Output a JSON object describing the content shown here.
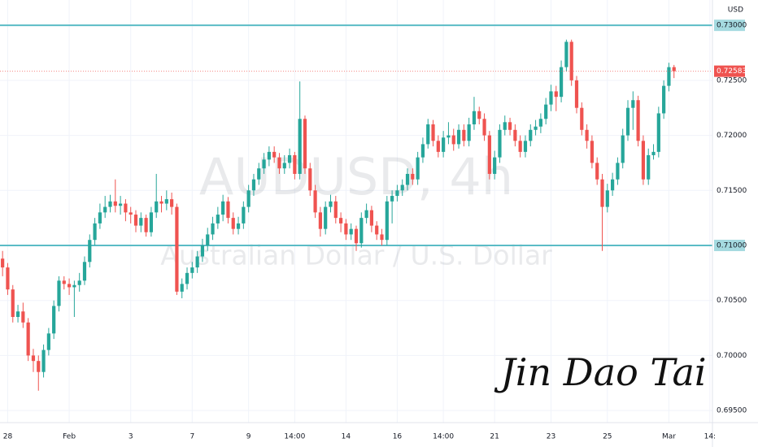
{
  "chart_data": {
    "type": "candlestick",
    "watermark": "AUDUSD, 4h",
    "watermark_subtitle": "Australian Dollar / U.S. Dollar",
    "currency": "USD",
    "up_color": "#26a69a",
    "down_color": "#ef5350",
    "hline_color": "#5bbcc6",
    "hlines": [
      0.73,
      0.71
    ],
    "grid": true,
    "xlim": [
      -0.5,
      138.5
    ],
    "xticks": [
      {
        "value": 1,
        "label": "28"
      },
      {
        "value": 13,
        "label": "Feb"
      },
      {
        "value": 25,
        "label": "3"
      },
      {
        "value": 37,
        "label": "7"
      },
      {
        "value": 48,
        "label": "9"
      },
      {
        "value": 57,
        "label": "14:00"
      },
      {
        "value": 67,
        "label": "14"
      },
      {
        "value": 77,
        "label": "16"
      },
      {
        "value": 86,
        "label": "14:00"
      },
      {
        "value": 96,
        "label": "21"
      },
      {
        "value": 107,
        "label": "23"
      },
      {
        "value": 118,
        "label": "25"
      },
      {
        "value": 130,
        "label": "Mar"
      },
      {
        "value": 138,
        "label": "14:"
      }
    ],
    "ylim": [
      0.6939,
      0.7323
    ],
    "yticks": [
      {
        "value": 0.73,
        "label": "0.73000"
      },
      {
        "value": 0.725,
        "label": "0.72500"
      },
      {
        "value": 0.72,
        "label": "0.72000"
      },
      {
        "value": 0.715,
        "label": "0.71500"
      },
      {
        "value": 0.71,
        "label": "0.71000"
      },
      {
        "value": 0.705,
        "label": "0.70500"
      },
      {
        "value": 0.7,
        "label": "0.70000"
      },
      {
        "value": 0.695,
        "label": "0.69500"
      }
    ],
    "open": [
      0.7088,
      0.708,
      0.706,
      0.7035,
      0.704,
      0.703,
      0.7,
      0.6995,
      0.6985,
      0.7005,
      0.702,
      0.7045,
      0.7068,
      0.7065,
      0.7062,
      0.7064,
      0.7068,
      0.7085,
      0.7105,
      0.712,
      0.713,
      0.7135,
      0.714,
      0.7136,
      0.7138,
      0.713,
      0.7128,
      0.7118,
      0.7125,
      0.7112,
      0.713,
      0.714,
      0.7138,
      0.7142,
      0.7135,
      0.7058,
      0.7065,
      0.7075,
      0.708,
      0.709,
      0.71,
      0.711,
      0.712,
      0.7128,
      0.714,
      0.7125,
      0.7115,
      0.712,
      0.7135,
      0.715,
      0.716,
      0.717,
      0.7178,
      0.7185,
      0.718,
      0.717,
      0.7175,
      0.7182,
      0.7165,
      0.7215,
      0.717,
      0.715,
      0.713,
      0.7115,
      0.7135,
      0.714,
      0.7125,
      0.712,
      0.711,
      0.7115,
      0.7102,
      0.7125,
      0.7132,
      0.7118,
      0.711,
      0.7105,
      0.714,
      0.7145,
      0.715,
      0.7155,
      0.7165,
      0.716,
      0.718,
      0.7192,
      0.721,
      0.7195,
      0.7185,
      0.7198,
      0.72,
      0.7192,
      0.7205,
      0.7195,
      0.721,
      0.7222,
      0.7215,
      0.72,
      0.7165,
      0.718,
      0.7205,
      0.7212,
      0.7205,
      0.7195,
      0.7185,
      0.7195,
      0.7205,
      0.7208,
      0.7215,
      0.7228,
      0.724,
      0.7235,
      0.7262,
      0.7285,
      0.725,
      0.7225,
      0.7205,
      0.7195,
      0.7175,
      0.716,
      0.7135,
      0.715,
      0.716,
      0.7175,
      0.72,
      0.7225,
      0.7232,
      0.7195,
      0.716,
      0.7182,
      0.7185,
      0.722,
      0.7245,
      0.7262
    ],
    "high": [
      0.7095,
      0.7084,
      0.7064,
      0.7046,
      0.7048,
      0.7034,
      0.7006,
      0.7,
      0.701,
      0.7025,
      0.705,
      0.7072,
      0.7072,
      0.707,
      0.7068,
      0.7075,
      0.709,
      0.711,
      0.7125,
      0.7138,
      0.7145,
      0.7146,
      0.716,
      0.7145,
      0.7142,
      0.7135,
      0.7132,
      0.713,
      0.7128,
      0.7135,
      0.7165,
      0.7145,
      0.715,
      0.7148,
      0.7138,
      0.707,
      0.708,
      0.7085,
      0.7095,
      0.7106,
      0.7116,
      0.7126,
      0.7135,
      0.7146,
      0.7144,
      0.713,
      0.7126,
      0.714,
      0.7155,
      0.7165,
      0.7175,
      0.7184,
      0.719,
      0.719,
      0.7184,
      0.7182,
      0.7188,
      0.7185,
      0.7249,
      0.7218,
      0.7175,
      0.7155,
      0.7135,
      0.714,
      0.7146,
      0.7145,
      0.713,
      0.7124,
      0.712,
      0.7118,
      0.713,
      0.7138,
      0.7136,
      0.7122,
      0.7115,
      0.7145,
      0.715,
      0.7155,
      0.716,
      0.717,
      0.717,
      0.7185,
      0.7198,
      0.7215,
      0.7214,
      0.72,
      0.7204,
      0.7212,
      0.7206,
      0.721,
      0.721,
      0.7216,
      0.7235,
      0.7226,
      0.722,
      0.7204,
      0.7186,
      0.721,
      0.7218,
      0.7216,
      0.721,
      0.72,
      0.72,
      0.721,
      0.7214,
      0.722,
      0.7234,
      0.7246,
      0.7245,
      0.7268,
      0.7287,
      0.7287,
      0.7254,
      0.723,
      0.721,
      0.72,
      0.718,
      0.7165,
      0.7156,
      0.7166,
      0.718,
      0.7206,
      0.7232,
      0.724,
      0.7236,
      0.72,
      0.7188,
      0.7192,
      0.7226,
      0.725,
      0.7266,
      0.7264
    ],
    "low": [
      0.7072,
      0.7055,
      0.703,
      0.703,
      0.7025,
      0.6995,
      0.6985,
      0.6968,
      0.698,
      0.7,
      0.7015,
      0.704,
      0.706,
      0.7055,
      0.7035,
      0.7058,
      0.7064,
      0.708,
      0.71,
      0.7115,
      0.7125,
      0.713,
      0.713,
      0.7128,
      0.7122,
      0.712,
      0.7112,
      0.7112,
      0.7108,
      0.7108,
      0.7125,
      0.713,
      0.7132,
      0.7128,
      0.7055,
      0.7052,
      0.706,
      0.707,
      0.7075,
      0.7085,
      0.7095,
      0.7105,
      0.7115,
      0.7122,
      0.712,
      0.711,
      0.711,
      0.7115,
      0.713,
      0.7145,
      0.7155,
      0.7165,
      0.7172,
      0.7175,
      0.7165,
      0.7165,
      0.717,
      0.716,
      0.716,
      0.7165,
      0.7145,
      0.7125,
      0.7108,
      0.711,
      0.713,
      0.712,
      0.7112,
      0.7105,
      0.7105,
      0.7095,
      0.7098,
      0.712,
      0.7112,
      0.7105,
      0.71,
      0.71,
      0.712,
      0.714,
      0.7145,
      0.715,
      0.7155,
      0.7155,
      0.7175,
      0.7188,
      0.719,
      0.718,
      0.718,
      0.7192,
      0.7186,
      0.7188,
      0.719,
      0.719,
      0.7205,
      0.721,
      0.7195,
      0.716,
      0.716,
      0.7175,
      0.72,
      0.72,
      0.719,
      0.718,
      0.718,
      0.719,
      0.72,
      0.7202,
      0.721,
      0.7222,
      0.7222,
      0.723,
      0.7258,
      0.7245,
      0.722,
      0.72,
      0.7188,
      0.717,
      0.7155,
      0.7095,
      0.713,
      0.7145,
      0.7155,
      0.717,
      0.7195,
      0.7205,
      0.719,
      0.7155,
      0.7155,
      0.7178,
      0.718,
      0.7215,
      0.724,
      0.7252
    ],
    "close": [
      0.708,
      0.706,
      0.7035,
      0.704,
      0.703,
      0.7,
      0.6995,
      0.6985,
      0.7005,
      0.702,
      0.7045,
      0.7068,
      0.7065,
      0.7062,
      0.7064,
      0.7068,
      0.7085,
      0.7105,
      0.712,
      0.713,
      0.7135,
      0.714,
      0.7136,
      0.7138,
      0.713,
      0.7128,
      0.7118,
      0.7125,
      0.7112,
      0.713,
      0.714,
      0.7138,
      0.7142,
      0.7135,
      0.7058,
      0.7065,
      0.7075,
      0.708,
      0.709,
      0.71,
      0.711,
      0.712,
      0.7128,
      0.714,
      0.7125,
      0.7115,
      0.712,
      0.7135,
      0.715,
      0.716,
      0.717,
      0.7178,
      0.7185,
      0.718,
      0.717,
      0.7175,
      0.7182,
      0.7165,
      0.7215,
      0.717,
      0.715,
      0.713,
      0.7115,
      0.7135,
      0.714,
      0.7125,
      0.712,
      0.711,
      0.7115,
      0.7102,
      0.7125,
      0.7132,
      0.7118,
      0.711,
      0.7105,
      0.714,
      0.7145,
      0.715,
      0.7155,
      0.7165,
      0.716,
      0.718,
      0.7192,
      0.721,
      0.7195,
      0.7185,
      0.7198,
      0.72,
      0.7192,
      0.7205,
      0.7195,
      0.721,
      0.7222,
      0.7215,
      0.72,
      0.7165,
      0.718,
      0.7205,
      0.7212,
      0.7205,
      0.7195,
      0.7185,
      0.7195,
      0.7205,
      0.7208,
      0.7215,
      0.7228,
      0.724,
      0.7235,
      0.7262,
      0.7285,
      0.725,
      0.7225,
      0.7205,
      0.7195,
      0.7175,
      0.716,
      0.7135,
      0.715,
      0.716,
      0.7175,
      0.72,
      0.7225,
      0.7232,
      0.7195,
      0.716,
      0.7182,
      0.7185,
      0.722,
      0.7245,
      0.7262,
      0.72583
    ]
  },
  "signature": "Jin Dao Tai"
}
